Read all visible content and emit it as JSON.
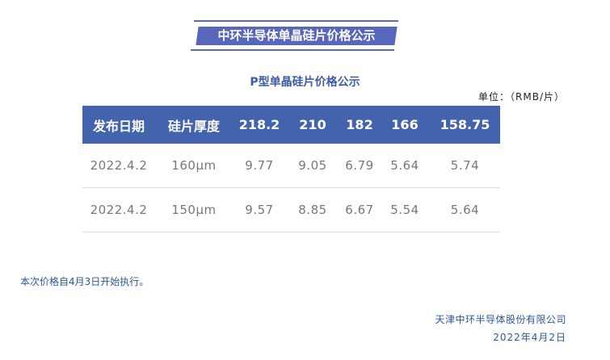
{
  "banner": {
    "title": "中环半导体单晶硅片价格公示"
  },
  "subtitle": "P型单晶硅片价格公示",
  "unit": "单位：（RMB/片）",
  "table": {
    "headers": [
      "发布日期",
      "硅片厚度",
      "218.2",
      "210",
      "182",
      "166",
      "158.75"
    ],
    "rows": [
      [
        "2022.4.2",
        "160μm",
        "9.77",
        "9.05",
        "6.79",
        "5.64",
        "5.74"
      ],
      [
        "2022.4.2",
        "150μm",
        "9.57",
        "8.85",
        "6.67",
        "5.54",
        "5.64"
      ]
    ]
  },
  "note": "本次价格自4月3日开始执行。",
  "footer": {
    "company": "天津中环半导体股份有限公司",
    "date": "2022年4月2日"
  },
  "colors": {
    "header_bg": "#4463ad",
    "banner_bg": "#5866bb",
    "text_blue": "#2b5797"
  }
}
